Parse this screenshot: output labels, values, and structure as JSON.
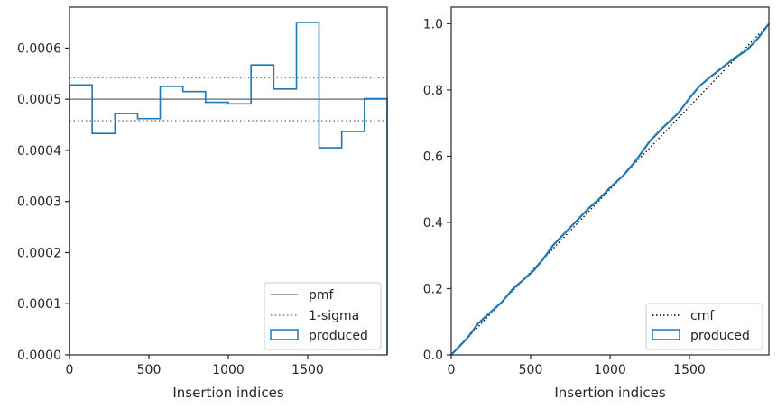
{
  "chart_data": [
    {
      "type": "histogram",
      "xlabel": "Insertion indices",
      "ylabel": "",
      "xlim": [
        0,
        2000
      ],
      "ylim": [
        0,
        0.00068
      ],
      "xticks": [
        0,
        500,
        1000,
        1500
      ],
      "xtick_labels": [
        "0",
        "500",
        "1000",
        "1500"
      ],
      "yticks": [
        0,
        0.0001,
        0.0002,
        0.0003,
        0.0004,
        0.0005,
        0.0006
      ],
      "ytick_labels": [
        "0.0000",
        "0.0001",
        "0.0002",
        "0.0003",
        "0.0004",
        "0.0005",
        "0.0006"
      ],
      "grid": false,
      "legend_position": "lower right",
      "bin_edges": [
        0,
        143,
        286,
        429,
        571,
        714,
        857,
        1000,
        1143,
        1286,
        1429,
        1571,
        1714,
        1857,
        2000
      ],
      "produced": [
        0.000528,
        0.000433,
        0.000472,
        0.000462,
        0.000525,
        0.000515,
        0.000494,
        0.000491,
        0.000567,
        0.00052,
        0.00065,
        0.000405,
        0.000437,
        0.000501
      ],
      "pmf": 0.0005,
      "sigma_upper": 0.000542,
      "sigma_lower": 0.000458,
      "legend": [
        {
          "label": "pmf",
          "style": "solid",
          "color": "#808080"
        },
        {
          "label": "1-sigma",
          "style": "dotted",
          "color": "#808080"
        },
        {
          "label": "produced",
          "style": "patch",
          "color": "#1f77b4"
        }
      ]
    },
    {
      "type": "line",
      "xlabel": "Insertion indices",
      "ylabel": "",
      "xlim": [
        0,
        2000
      ],
      "ylim": [
        0,
        1.05
      ],
      "xticks": [
        0,
        500,
        1000,
        1500
      ],
      "xtick_labels": [
        "0",
        "500",
        "1000",
        "1500"
      ],
      "yticks": [
        0,
        0.2,
        0.4,
        0.6,
        0.8,
        1.0
      ],
      "ytick_labels": [
        "0.0",
        "0.2",
        "0.4",
        "0.6",
        "0.8",
        "1.0"
      ],
      "grid": false,
      "legend_position": "lower right",
      "cmf": {
        "x": [
          0,
          2000
        ],
        "y": [
          0,
          1.0
        ]
      },
      "produced": {
        "x": [
          0,
          100,
          170,
          250,
          320,
          390,
          450,
          520,
          580,
          640,
          700,
          780,
          860,
          940,
          1000,
          1080,
          1160,
          1250,
          1330,
          1430,
          1500,
          1560,
          1620,
          1700,
          1780,
          1860,
          1930,
          2000
        ],
        "y": [
          0,
          0.05,
          0.095,
          0.13,
          0.16,
          0.2,
          0.225,
          0.255,
          0.29,
          0.33,
          0.36,
          0.4,
          0.44,
          0.475,
          0.505,
          0.54,
          0.585,
          0.645,
          0.685,
          0.73,
          0.775,
          0.81,
          0.835,
          0.865,
          0.895,
          0.92,
          0.955,
          1.0
        ]
      },
      "legend": [
        {
          "label": "cmf",
          "style": "dotted",
          "color": "#000000"
        },
        {
          "label": "produced",
          "style": "patch",
          "color": "#1f77b4"
        }
      ]
    }
  ]
}
